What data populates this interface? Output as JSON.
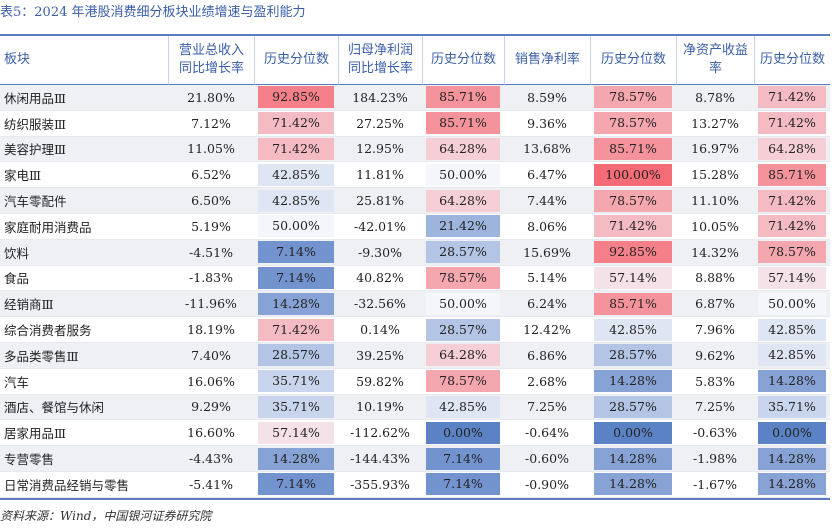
{
  "title": "表5：2024 年港股消费细分板块业绩增速与盈利能力",
  "source": "资料来源：Wind，中国银河证券研究院",
  "colors": {
    "header_text": "#3a5ea8",
    "rule": "#5b7bbd"
  },
  "columns": [
    "板块",
    "营业总收入同比增长率",
    "历史分位数",
    "归母净利润同比增长率",
    "历史分位数",
    "销售净利率",
    "历史分位数",
    "净资产收益率",
    "历史分位数"
  ],
  "header_lines": [
    [
      "板块"
    ],
    [
      "营业总收入",
      "同比增长率"
    ],
    [
      "历史分位数"
    ],
    [
      "归母净利润",
      "同比增长率"
    ],
    [
      "历史分位数"
    ],
    [
      "销售净利率"
    ],
    [
      "历史分位数"
    ],
    [
      "净资产收益",
      "率"
    ],
    [
      "历史分位数"
    ]
  ],
  "rows": [
    {
      "name": "休闲用品Ⅲ",
      "rev": "21.80%",
      "rev_pct": "92.85%",
      "np": "184.23%",
      "np_pct": "85.71%",
      "npm": "8.59%",
      "npm_pct": "78.57%",
      "roe": "8.78%",
      "roe_pct": "71.42%"
    },
    {
      "name": "纺织服装Ⅲ",
      "rev": "7.12%",
      "rev_pct": "71.42%",
      "np": "27.25%",
      "np_pct": "85.71%",
      "npm": "9.36%",
      "npm_pct": "78.57%",
      "roe": "13.27%",
      "roe_pct": "71.42%"
    },
    {
      "name": "美容护理Ⅲ",
      "rev": "11.05%",
      "rev_pct": "71.42%",
      "np": "12.95%",
      "np_pct": "64.28%",
      "npm": "13.68%",
      "npm_pct": "85.71%",
      "roe": "16.97%",
      "roe_pct": "64.28%"
    },
    {
      "name": "家电Ⅲ",
      "rev": "6.52%",
      "rev_pct": "42.85%",
      "np": "11.81%",
      "np_pct": "50.00%",
      "npm": "6.47%",
      "npm_pct": "100.00%",
      "roe": "15.28%",
      "roe_pct": "85.71%"
    },
    {
      "name": "汽车零配件",
      "rev": "6.50%",
      "rev_pct": "42.85%",
      "np": "25.81%",
      "np_pct": "64.28%",
      "npm": "7.44%",
      "npm_pct": "78.57%",
      "roe": "11.10%",
      "roe_pct": "71.42%"
    },
    {
      "name": "家庭耐用消费品",
      "rev": "5.19%",
      "rev_pct": "50.00%",
      "np": "-42.01%",
      "np_pct": "21.42%",
      "npm": "8.06%",
      "npm_pct": "71.42%",
      "roe": "10.05%",
      "roe_pct": "71.42%"
    },
    {
      "name": "饮料",
      "rev": "-4.51%",
      "rev_pct": "7.14%",
      "np": "-9.30%",
      "np_pct": "28.57%",
      "npm": "15.69%",
      "npm_pct": "92.85%",
      "roe": "14.32%",
      "roe_pct": "78.57%"
    },
    {
      "name": "食品",
      "rev": "-1.83%",
      "rev_pct": "7.14%",
      "np": "40.82%",
      "np_pct": "78.57%",
      "npm": "5.14%",
      "npm_pct": "57.14%",
      "roe": "8.88%",
      "roe_pct": "57.14%"
    },
    {
      "name": "经销商Ⅲ",
      "rev": "-11.96%",
      "rev_pct": "14.28%",
      "np": "-32.56%",
      "np_pct": "50.00%",
      "npm": "6.24%",
      "npm_pct": "85.71%",
      "roe": "6.87%",
      "roe_pct": "50.00%"
    },
    {
      "name": "综合消费者服务",
      "rev": "18.19%",
      "rev_pct": "71.42%",
      "np": "0.14%",
      "np_pct": "28.57%",
      "npm": "12.42%",
      "npm_pct": "42.85%",
      "roe": "7.96%",
      "roe_pct": "42.85%"
    },
    {
      "name": "多品类零售Ⅲ",
      "rev": "7.40%",
      "rev_pct": "28.57%",
      "np": "39.25%",
      "np_pct": "64.28%",
      "npm": "6.86%",
      "npm_pct": "28.57%",
      "roe": "9.62%",
      "roe_pct": "42.85%"
    },
    {
      "name": "汽车",
      "rev": "16.06%",
      "rev_pct": "35.71%",
      "np": "59.82%",
      "np_pct": "78.57%",
      "npm": "2.68%",
      "npm_pct": "14.28%",
      "roe": "5.83%",
      "roe_pct": "14.28%"
    },
    {
      "name": "酒店、餐馆与休闲",
      "rev": "9.29%",
      "rev_pct": "35.71%",
      "np": "10.19%",
      "np_pct": "42.85%",
      "npm": "7.25%",
      "npm_pct": "28.57%",
      "roe": "7.25%",
      "roe_pct": "35.71%"
    },
    {
      "name": "居家用品Ⅲ",
      "rev": "16.60%",
      "rev_pct": "57.14%",
      "np": "-112.62%",
      "np_pct": "0.00%",
      "npm": "-0.64%",
      "npm_pct": "0.00%",
      "roe": "-0.63%",
      "roe_pct": "0.00%"
    },
    {
      "name": "专营零售",
      "rev": "-4.43%",
      "rev_pct": "14.28%",
      "np": "-144.43%",
      "np_pct": "7.14%",
      "npm": "-0.60%",
      "npm_pct": "14.28%",
      "roe": "-1.98%",
      "roe_pct": "14.28%"
    },
    {
      "name": "日常消费品经销与零售",
      "rev": "-5.41%",
      "rev_pct": "7.14%",
      "np": "-355.93%",
      "np_pct": "7.14%",
      "npm": "-0.90%",
      "npm_pct": "14.28%",
      "roe": "-1.67%",
      "roe_pct": "14.28%"
    }
  ]
}
